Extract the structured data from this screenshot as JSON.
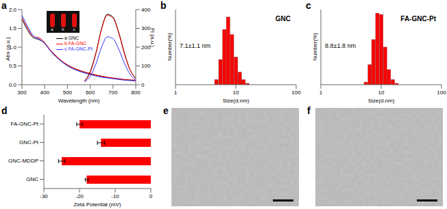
{
  "chart_data": [
    {
      "panel": "a",
      "type": "line",
      "xlabel": "Wavelength (nm)",
      "ylabel": "Abs (a.u.)",
      "y2label": "FI (a.u.)",
      "x": [
        300,
        325,
        350,
        375,
        400,
        425,
        450,
        475,
        500,
        525,
        550,
        575,
        600,
        625,
        650,
        675,
        700,
        725,
        750,
        775,
        800
      ],
      "xlim": [
        300,
        800
      ],
      "xticks": [
        300,
        400,
        500,
        600,
        700,
        800
      ],
      "ylim": [
        0,
        2
      ],
      "yticks": [
        {
          "value": 0,
          "label": "0.0"
        },
        {
          "value": 0.5,
          "label": "0.5"
        },
        {
          "value": 1,
          "label": "1.0"
        },
        {
          "value": 1.5,
          "label": "1.5"
        },
        {
          "value": 2,
          "label": "2.0"
        }
      ],
      "y2lim": [
        0,
        400
      ],
      "y2ticks": [
        0,
        100,
        200,
        300,
        400
      ],
      "inset_labels": [
        "a",
        "b",
        "c"
      ],
      "series": [
        {
          "name": "a GNC",
          "color": "#000000",
          "values": [
            1.75,
            1.45,
            1.25,
            1.2,
            1.1,
            0.9,
            0.75,
            0.62,
            0.52,
            0.44,
            0.38,
            0.33,
            0.29,
            0.25,
            0.22,
            0.19,
            0.17,
            0.15,
            0.13,
            0.12,
            0.11
          ],
          "fl_values": [
            null,
            null,
            null,
            null,
            null,
            null,
            null,
            null,
            null,
            null,
            null,
            20,
            70,
            170,
            300,
            375,
            360,
            280,
            170,
            80,
            35
          ]
        },
        {
          "name": "b FA-GNC",
          "color": "#ff0000",
          "values": [
            1.78,
            1.5,
            1.28,
            1.25,
            1.12,
            0.92,
            0.77,
            0.63,
            0.53,
            0.45,
            0.39,
            0.34,
            0.3,
            0.26,
            0.23,
            0.2,
            0.18,
            0.16,
            0.14,
            0.13,
            0.12
          ],
          "fl_values": [
            null,
            null,
            null,
            null,
            null,
            null,
            null,
            null,
            null,
            null,
            null,
            18,
            65,
            165,
            295,
            370,
            355,
            275,
            165,
            78,
            33
          ]
        },
        {
          "name": "c FA-GNC-Pt",
          "color": "#3333ff",
          "values": [
            1.85,
            1.55,
            1.3,
            1.22,
            1.1,
            0.9,
            0.74,
            0.61,
            0.5,
            0.42,
            0.36,
            0.31,
            0.27,
            0.23,
            0.2,
            0.18,
            0.16,
            0.14,
            0.12,
            0.11,
            0.1
          ],
          "fl_values": [
            null,
            null,
            null,
            null,
            null,
            null,
            null,
            null,
            null,
            null,
            null,
            15,
            45,
            110,
            200,
            255,
            245,
            190,
            115,
            55,
            25
          ]
        }
      ]
    },
    {
      "panel": "b",
      "type": "bar",
      "title": "GNC",
      "annotation": "7.1±1.1 nm",
      "xlabel": "Size(d.nm)",
      "ylabel": "Number(%)",
      "log": "x",
      "x": [
        4.8,
        5.6,
        6.5,
        7.5,
        8.7,
        10.1,
        11.7,
        13.5,
        15.7
      ],
      "values": [
        2,
        10,
        22,
        27,
        20,
        11,
        5,
        2,
        0.5
      ],
      "xlim": [
        1,
        100
      ],
      "xticks": [
        1,
        10,
        100
      ],
      "ylim": [
        0,
        30
      ],
      "tick_labels": "x",
      "color": "#ff0000"
    },
    {
      "panel": "c",
      "type": "bar",
      "title": "FA-GNC-Pt",
      "annotation": "8.8±1.8 nm",
      "xlabel": "Size(d.nm)",
      "ylabel": "Number(%)",
      "log": "x",
      "x": [
        5.6,
        6.5,
        7.5,
        8.7,
        10.1,
        11.7,
        13.5,
        15.7,
        18.2
      ],
      "values": [
        1,
        8,
        18,
        28.5,
        28,
        15,
        6,
        2,
        0.5
      ],
      "xlim": [
        1,
        100
      ],
      "xticks": [
        1,
        10,
        100
      ],
      "ylim": [
        0,
        30
      ],
      "tick_labels": "x",
      "color": "#ff0000"
    },
    {
      "panel": "d",
      "type": "bar",
      "orientation": "horizontal",
      "xlabel": "Zeta Potential (mV)",
      "categories": [
        "FA-GNC-Pt",
        "GNC-Pt",
        "GNC-MDDP",
        "GNC"
      ],
      "values": [
        -20,
        -14,
        -25,
        -18
      ],
      "errors": [
        0.8,
        1,
        0.9,
        0.4
      ],
      "xlim": [
        -30,
        0
      ],
      "xticks": [
        -30,
        -20,
        -10,
        0
      ],
      "color": "#ff0000"
    }
  ],
  "images": [
    {
      "panel": "e"
    },
    {
      "panel": "f"
    }
  ]
}
